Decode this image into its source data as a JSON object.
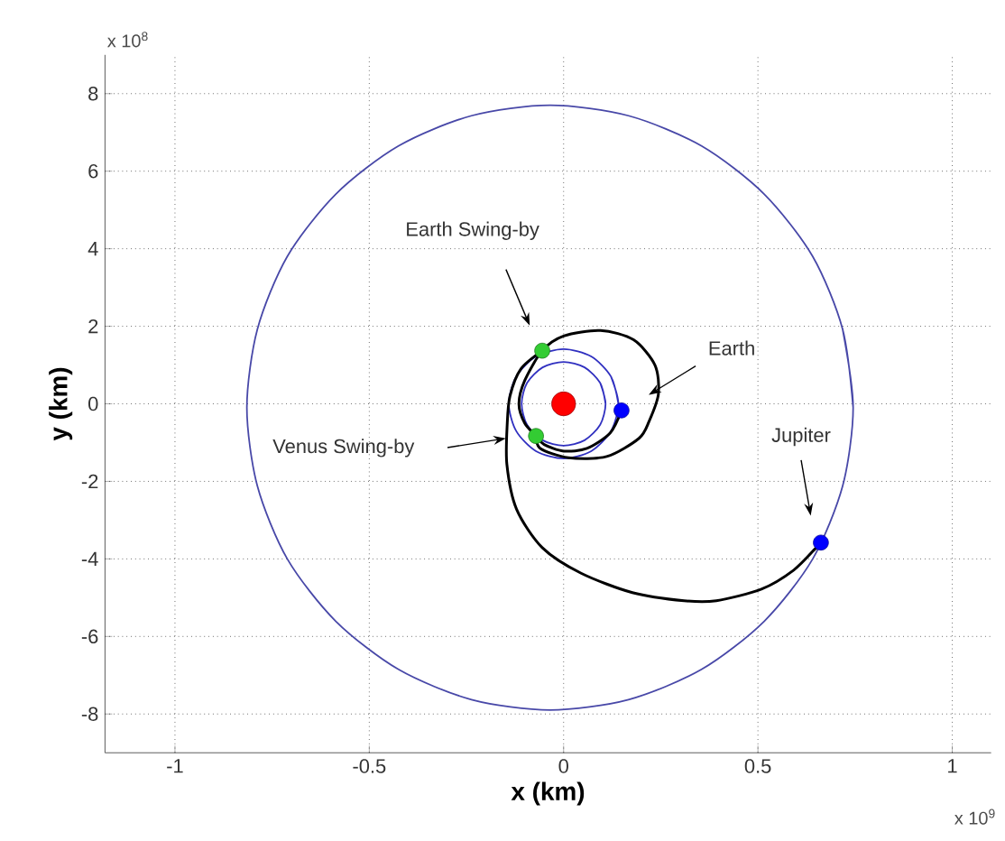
{
  "chart_data": {
    "type": "line",
    "xlabel": "x (km)",
    "ylabel": "y (km)",
    "xlim": [
      -1.18,
      1.1
    ],
    "ylim": [
      -9,
      9
    ],
    "xticks": [
      -1,
      -0.5,
      0,
      0.5,
      1
    ],
    "yticks": [
      -8,
      -6,
      -4,
      -2,
      0,
      2,
      4,
      6,
      8
    ],
    "grid": true,
    "annotations": [
      "x 10$^{9}$",
      "x 10$^{8}$",
      "Earth Swing-by",
      "Venus Swing-by",
      {
        "text": "Earth",
        "x": 0.219,
        "y": 0.23
      },
      "Jupiter"
    ],
    "series": [
      {
        "color": "#4848a8",
        "x": [
          0.745,
          0.718,
          0.641,
          0.516,
          0.355,
          0.167,
          -0.035,
          -0.237,
          -0.425,
          -0.586,
          -0.711,
          -0.788,
          -0.815,
          -0.788,
          -0.711,
          -0.586,
          -0.425,
          -0.237,
          -0.035,
          0.167,
          0.355,
          0.516,
          0.641,
          0.718,
          0.745,
          0.718
        ],
        "values": [
          -0.1,
          1.92,
          3.8,
          5.41,
          6.65,
          7.43,
          7.7,
          7.43,
          6.65,
          5.41,
          3.8,
          1.92,
          -0.1,
          -2.12,
          -4.0,
          -5.61,
          -6.85,
          -7.63,
          -7.9,
          -7.63,
          -6.85,
          -5.61,
          -4.0,
          -2.12,
          -0.1,
          1.92
        ]
      },
      {
        "color": "#3030c0",
        "x": [
          0.141,
          0.122,
          0.071,
          0,
          -0.071,
          -0.122,
          -0.141,
          -0.122,
          -0.071,
          0,
          0.071,
          0.122,
          0.141,
          0.122
        ],
        "values": [
          0,
          0.7,
          1.22,
          1.41,
          1.22,
          0.7,
          0,
          -0.7,
          -1.22,
          -1.41,
          -1.22,
          -0.7,
          0,
          0.7
        ]
      },
      {
        "color": "#3030c0",
        "x": [
          0.108,
          0.094,
          0.054,
          0,
          -0.054,
          -0.094,
          -0.108,
          -0.094,
          -0.054,
          0,
          0.054,
          0.094,
          0.108,
          0.094
        ],
        "values": [
          0,
          0.54,
          0.94,
          1.08,
          0.94,
          0.54,
          0,
          -0.54,
          -0.94,
          -1.08,
          -0.94,
          -0.54,
          0,
          0.54
        ]
      },
      {
        "color": "#000000",
        "x": [
          0.149,
          0.12,
          0.06,
          0,
          -0.05,
          -0.071,
          -0.1,
          -0.115,
          -0.1,
          -0.055,
          0,
          0.095,
          0.18,
          0.235,
          0.244,
          0.22,
          0.194,
          0.111,
          0.012,
          -0.06,
          -0.071
        ],
        "values": [
          -0.17,
          -0.75,
          -1.15,
          -1.22,
          -1.05,
          -0.83,
          -0.5,
          0,
          0.6,
          1.37,
          1.75,
          1.89,
          1.65,
          1.0,
          0.26,
          -0.45,
          -0.89,
          -1.36,
          -1.39,
          -1.15,
          -0.83
        ]
      },
      {
        "color": "#000000",
        "x": [
          -0.055,
          -0.11,
          -0.138,
          -0.145,
          -0.146,
          -0.121,
          -0.055,
          0.045,
          0.177,
          0.31,
          0.393,
          0.509,
          0.592,
          0.65,
          0.662
        ],
        "values": [
          1.37,
          0.9,
          0.2,
          -0.5,
          -1.56,
          -2.72,
          -3.71,
          -4.37,
          -4.87,
          -5.08,
          -5.08,
          -4.78,
          -4.29,
          -3.71,
          -3.58
        ]
      },
      {
        "type": "bubble",
        "x": [
          0,
          0.149,
          0.662,
          -0.055,
          -0.071
        ],
        "values": [
          0,
          -0.17,
          -3.58,
          1.37,
          -0.83
        ],
        "sizes": [
          1,
          0.4,
          0.4,
          0.4,
          0.4
        ],
        "colors": [
          "#ff0000",
          "#0000ff",
          "#0000ff",
          "#33cc33",
          "#33cc33"
        ]
      }
    ]
  }
}
